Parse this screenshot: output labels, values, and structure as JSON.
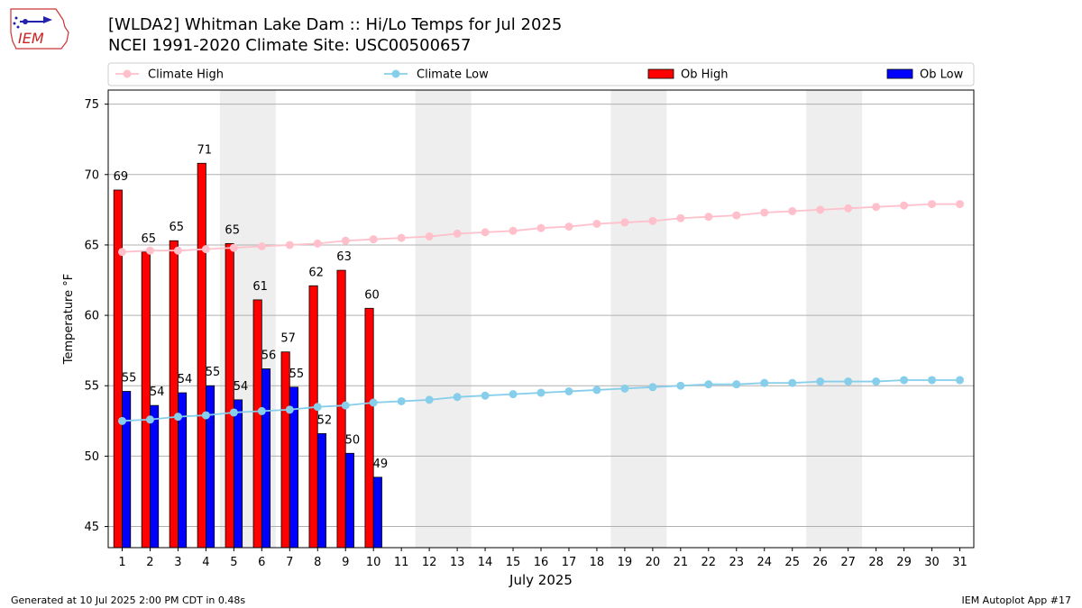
{
  "header": {
    "title_line1": "[WLDA2] Whitman Lake Dam :: Hi/Lo Temps for Jul 2025",
    "title_line2": "NCEI 1991-2020 Climate Site: USC00500657",
    "logo_text": "IEM"
  },
  "footer": {
    "generated": "Generated at 10 Jul 2025 2:00 PM CDT in 0.48s",
    "app": "IEM Autoplot App #17"
  },
  "colors": {
    "climate_high": "#ffc0cb",
    "climate_low": "#87ceeb",
    "ob_high": "#ff0000",
    "ob_low": "#0000ff",
    "weekend_shade": "#eeeeee",
    "grid": "#b0b0b0"
  },
  "chart_data": {
    "type": "bar",
    "xlabel": "July 2025",
    "ylabel": "Temperature °F",
    "xlim": [
      0.5,
      31.5
    ],
    "ylim": [
      43.5,
      76
    ],
    "yticks": [
      45,
      50,
      55,
      60,
      65,
      70,
      75
    ],
    "grid": "horizontal",
    "legend_placement": "top, above plot",
    "days": [
      1,
      2,
      3,
      4,
      5,
      6,
      7,
      8,
      9,
      10,
      11,
      12,
      13,
      14,
      15,
      16,
      17,
      18,
      19,
      20,
      21,
      22,
      23,
      24,
      25,
      26,
      27,
      28,
      29,
      30,
      31
    ],
    "weekend_spans": [
      [
        5,
        6
      ],
      [
        12,
        13
      ],
      [
        19,
        20
      ],
      [
        26,
        27
      ]
    ],
    "series": [
      {
        "name": "Climate High",
        "kind": "line",
        "values": [
          64.5,
          64.6,
          64.6,
          64.7,
          64.8,
          64.9,
          65.0,
          65.1,
          65.3,
          65.4,
          65.5,
          65.6,
          65.8,
          65.9,
          66.0,
          66.2,
          66.3,
          66.5,
          66.6,
          66.7,
          66.9,
          67.0,
          67.1,
          67.3,
          67.4,
          67.5,
          67.6,
          67.7,
          67.8,
          67.9,
          67.9
        ]
      },
      {
        "name": "Climate Low",
        "kind": "line",
        "values": [
          52.5,
          52.6,
          52.8,
          52.9,
          53.1,
          53.2,
          53.3,
          53.5,
          53.6,
          53.8,
          53.9,
          54.0,
          54.2,
          54.3,
          54.4,
          54.5,
          54.6,
          54.7,
          54.8,
          54.9,
          55.0,
          55.1,
          55.1,
          55.2,
          55.2,
          55.3,
          55.3,
          55.3,
          55.4,
          55.4,
          55.4
        ]
      },
      {
        "name": "Ob High",
        "kind": "bar",
        "values": [
          68.9,
          64.5,
          65.3,
          70.8,
          65.1,
          61.1,
          57.4,
          62.1,
          63.2,
          60.5
        ],
        "labels": [
          "69",
          "65",
          "65",
          "71",
          "65",
          "61",
          "57",
          "62",
          "63",
          "60"
        ]
      },
      {
        "name": "Ob Low",
        "kind": "bar",
        "values": [
          54.6,
          53.6,
          54.5,
          55.0,
          54.0,
          56.2,
          54.9,
          51.6,
          50.2,
          48.5
        ],
        "labels": [
          "55",
          "54",
          "54",
          "55",
          "54",
          "56",
          "55",
          "52",
          "50",
          "49"
        ]
      }
    ]
  }
}
